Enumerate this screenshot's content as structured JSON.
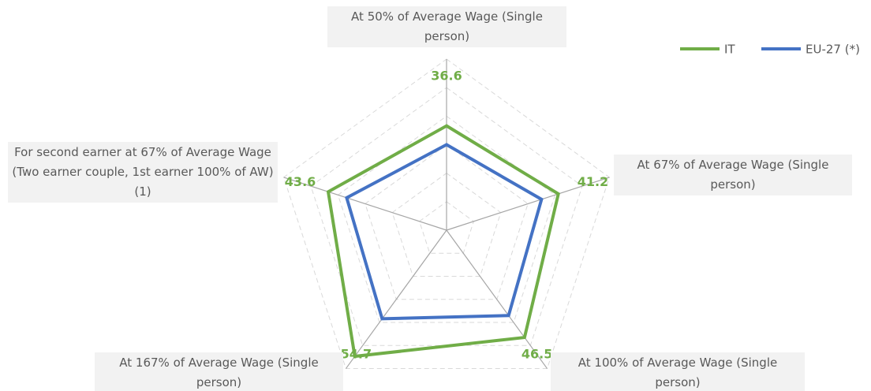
{
  "chart_data": {
    "type": "radar",
    "categories": [
      "At 50% of Average Wage (Single person)",
      "At 67% of Average Wage (Single person)",
      "At 100% of Average Wage (Single person)",
      "At 167% of Average Wage (Single person)",
      "For second earner at 67% of Average Wage (Two earner couple, 1st earner 100% of AW) (1)"
    ],
    "series": [
      {
        "name": "IT",
        "color": "#70ad47",
        "values": [
          36.6,
          41.2,
          46.5,
          54.7,
          43.6
        ]
      },
      {
        "name": "EU-27 (*)",
        "color": "#4472c4",
        "values": [
          30,
          35,
          37,
          38.4,
          36.8
        ]
      }
    ],
    "ylim": [
      0,
      60
    ],
    "yticks": [
      0,
      10,
      20,
      30,
      40,
      50,
      60
    ],
    "grid": true,
    "legend": "top-right"
  }
}
